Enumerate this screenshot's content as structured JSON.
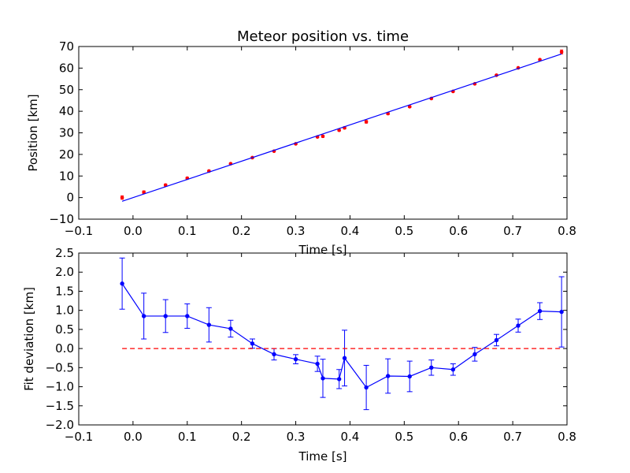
{
  "figure_background": "#ffffff",
  "chart_data": [
    {
      "type": "scatter",
      "title": "Meteor position vs. time",
      "xlabel": "Time [s]",
      "ylabel": "Position [km]",
      "xlim": [
        -0.1,
        0.8
      ],
      "ylim": [
        -10,
        70
      ],
      "xticks": [
        -0.1,
        0.0,
        0.1,
        0.2,
        0.3,
        0.4,
        0.5,
        0.6,
        0.7,
        0.8
      ],
      "xtick_labels": [
        "−0.1",
        "0.0",
        "0.1",
        "0.2",
        "0.3",
        "0.4",
        "0.5",
        "0.6",
        "0.7",
        "0.8"
      ],
      "yticks": [
        -10,
        0,
        10,
        20,
        30,
        40,
        50,
        60,
        70
      ],
      "ytick_labels": [
        "−10",
        "0",
        "10",
        "20",
        "30",
        "40",
        "50",
        "60",
        "70"
      ],
      "grid": false,
      "series": [
        {
          "kind": "errorbar-points",
          "color": "#ff0000",
          "x": [
            -0.02,
            0.02,
            0.06,
            0.1,
            0.14,
            0.18,
            0.22,
            0.26,
            0.3,
            0.34,
            0.35,
            0.38,
            0.39,
            0.43,
            0.47,
            0.51,
            0.55,
            0.59,
            0.63,
            0.67,
            0.71,
            0.75,
            0.79
          ],
          "y": [
            0.0,
            2.5,
            5.8,
            9.0,
            12.3,
            15.7,
            18.5,
            21.5,
            24.9,
            28.1,
            28.4,
            31.2,
            32.3,
            35.1,
            38.9,
            42.1,
            45.9,
            49.2,
            52.7,
            56.7,
            60.1,
            63.9,
            67.5
          ],
          "yerr": [
            0.8,
            0.6,
            0.5,
            0.4,
            0.4,
            0.3,
            0.3,
            0.3,
            0.3,
            0.3,
            0.5,
            0.4,
            0.5,
            0.6,
            0.5,
            0.4,
            0.3,
            0.3,
            0.3,
            0.3,
            0.3,
            0.4,
            0.9
          ]
        },
        {
          "kind": "fit-line",
          "color": "#0000ff",
          "x": [
            -0.02,
            0.79
          ],
          "y": [
            -1.7,
            66.55
          ]
        }
      ]
    },
    {
      "type": "line",
      "title": "",
      "xlabel": "Time [s]",
      "ylabel": "Fit deviation [km]",
      "xlim": [
        -0.1,
        0.8
      ],
      "ylim": [
        -2.0,
        2.5
      ],
      "xticks": [
        -0.1,
        0.0,
        0.1,
        0.2,
        0.3,
        0.4,
        0.5,
        0.6,
        0.7,
        0.8
      ],
      "xtick_labels": [
        "−0.1",
        "0.0",
        "0.1",
        "0.2",
        "0.3",
        "0.4",
        "0.5",
        "0.6",
        "0.7",
        "0.8"
      ],
      "yticks": [
        -2.0,
        -1.5,
        -1.0,
        -0.5,
        0.0,
        0.5,
        1.0,
        1.5,
        2.0,
        2.5
      ],
      "ytick_labels": [
        "−2.0",
        "−1.5",
        "−1.0",
        "−0.5",
        "0.0",
        "0.5",
        "1.0",
        "1.5",
        "2.0",
        "2.5"
      ],
      "grid": false,
      "series": [
        {
          "kind": "errorbar-line",
          "color": "#0000ff",
          "x": [
            -0.02,
            0.02,
            0.06,
            0.1,
            0.14,
            0.18,
            0.22,
            0.26,
            0.3,
            0.34,
            0.35,
            0.38,
            0.39,
            0.43,
            0.47,
            0.51,
            0.55,
            0.59,
            0.63,
            0.67,
            0.71,
            0.75,
            0.79
          ],
          "y": [
            1.7,
            0.85,
            0.85,
            0.85,
            0.62,
            0.52,
            0.13,
            -0.15,
            -0.28,
            -0.4,
            -0.78,
            -0.8,
            -0.25,
            -1.02,
            -0.72,
            -0.73,
            -0.5,
            -0.55,
            -0.15,
            0.22,
            0.6,
            0.98,
            0.96
          ],
          "yerr": [
            0.67,
            0.6,
            0.43,
            0.32,
            0.45,
            0.22,
            0.12,
            0.15,
            0.12,
            0.2,
            0.5,
            0.25,
            0.73,
            0.58,
            0.45,
            0.4,
            0.2,
            0.15,
            0.18,
            0.15,
            0.17,
            0.22,
            0.92
          ]
        },
        {
          "kind": "zero-reference",
          "color": "#ff0000",
          "style": "dashed",
          "x": [
            -0.02,
            0.79
          ],
          "y": [
            0.0,
            0.0
          ]
        }
      ]
    }
  ]
}
